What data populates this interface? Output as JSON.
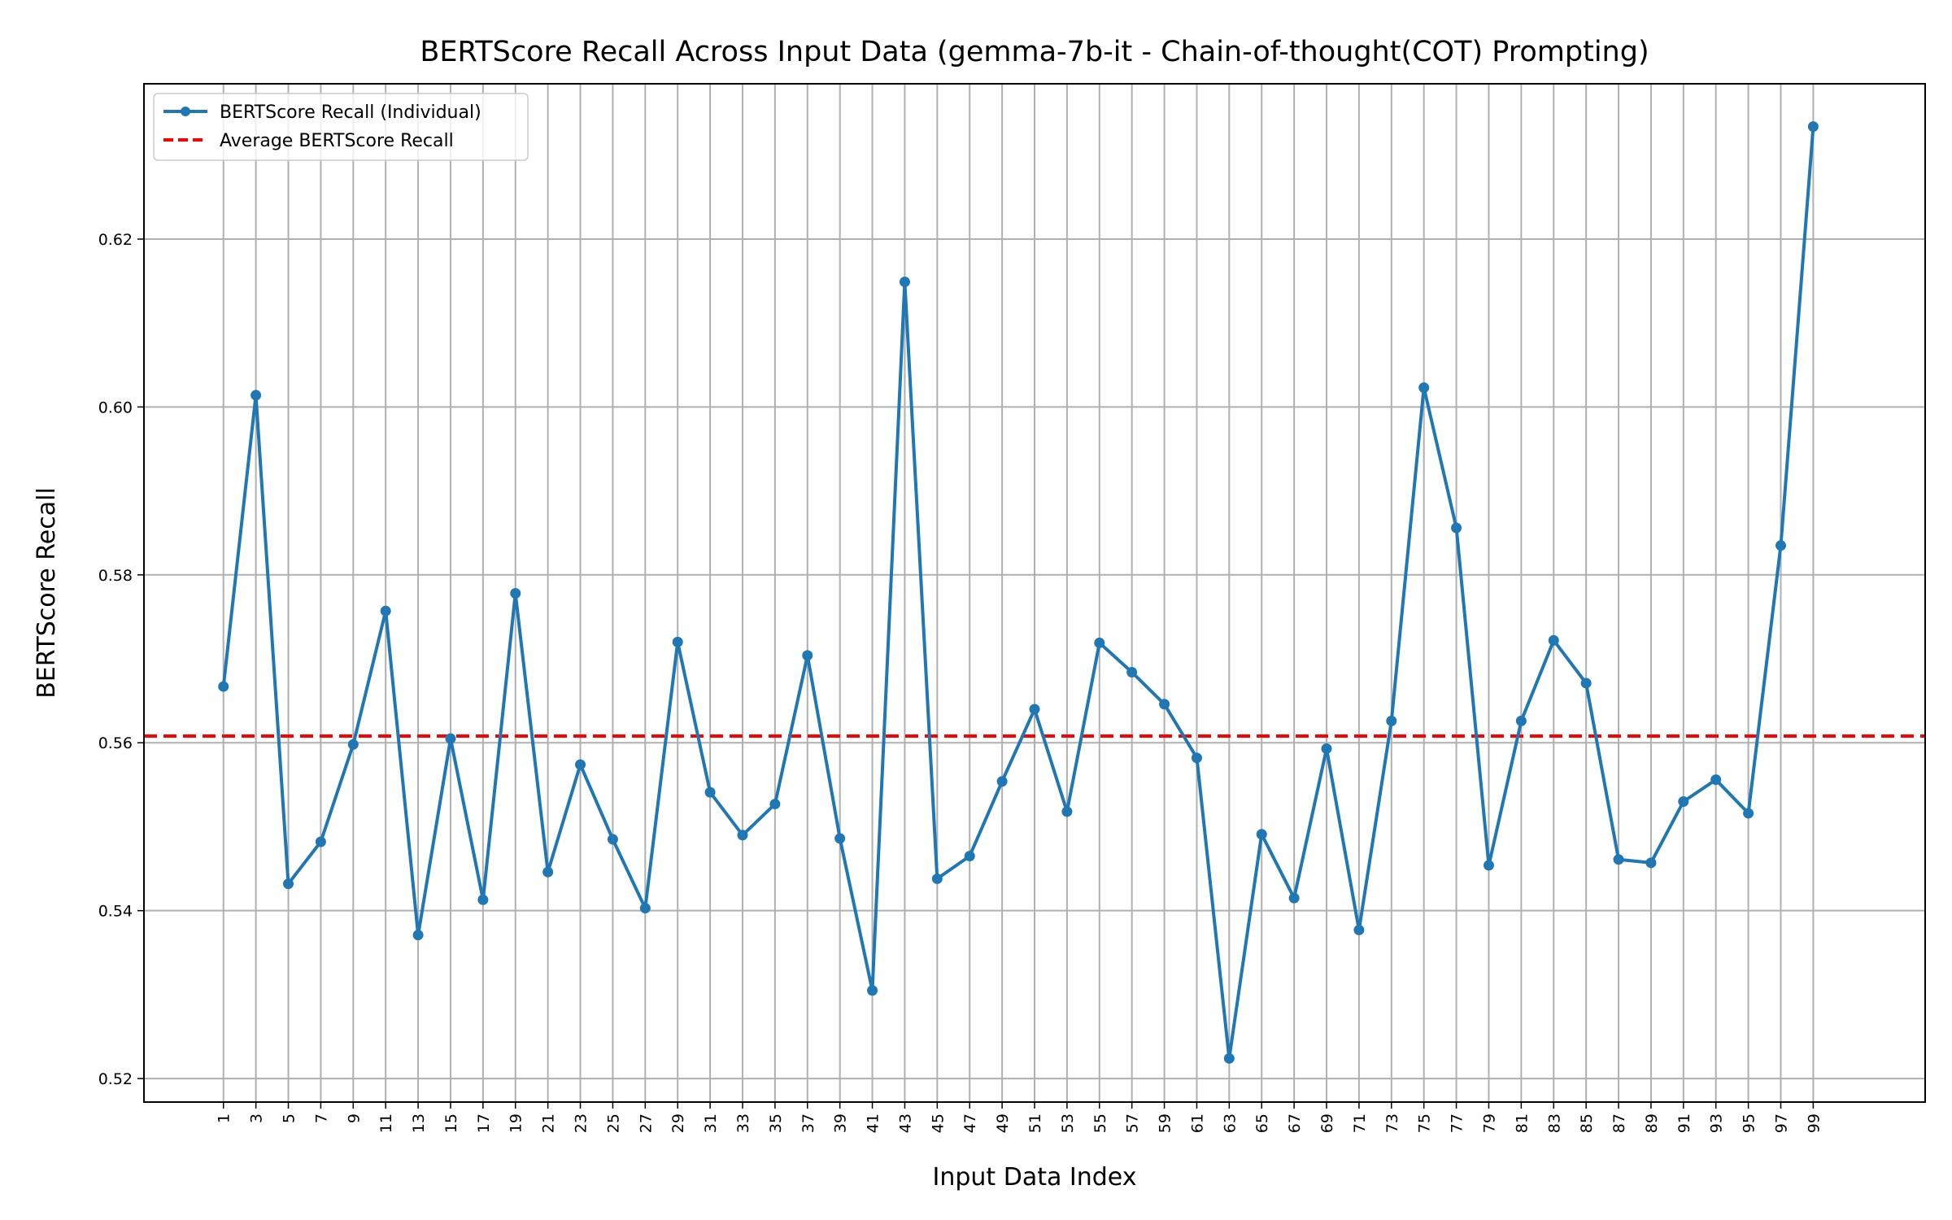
{
  "chart_data": {
    "type": "line",
    "title": "BERTScore Recall Across Input Data (gemma-7b-it - Chain-of-thought(COT) Prompting)",
    "xlabel": "Input Data Index",
    "ylabel": "BERTScore Recall",
    "xlim": [
      -3.9,
      105.9
    ],
    "ylim": [
      0.5172,
      0.6385
    ],
    "x": [
      1,
      3,
      5,
      7,
      9,
      11,
      13,
      15,
      17,
      19,
      21,
      23,
      25,
      27,
      29,
      31,
      33,
      35,
      37,
      39,
      41,
      43,
      45,
      47,
      49,
      51,
      53,
      55,
      57,
      59,
      61,
      63,
      65,
      67,
      69,
      71,
      73,
      75,
      77,
      79,
      81,
      83,
      85,
      87,
      89,
      91,
      93,
      95,
      97,
      99
    ],
    "x_ticks": [
      "1",
      "3",
      "5",
      "7",
      "9",
      "11",
      "13",
      "15",
      "17",
      "19",
      "21",
      "23",
      "25",
      "27",
      "29",
      "31",
      "33",
      "35",
      "37",
      "39",
      "41",
      "43",
      "45",
      "47",
      "49",
      "51",
      "53",
      "55",
      "57",
      "59",
      "61",
      "63",
      "65",
      "67",
      "69",
      "71",
      "73",
      "75",
      "77",
      "79",
      "81",
      "83",
      "85",
      "87",
      "89",
      "91",
      "93",
      "95",
      "97",
      "99"
    ],
    "y_ticks": [
      0.52,
      0.54,
      0.56,
      0.58,
      0.6,
      0.62
    ],
    "y_tick_labels": [
      "0.52",
      "0.54",
      "0.56",
      "0.58",
      "0.60",
      "0.62"
    ],
    "grid": true,
    "legend_position": "top-left",
    "series": [
      {
        "name": "BERTScore Recall (Individual)",
        "color": "#1f77b4",
        "style": "solid-with-markers",
        "values": [
          0.5667,
          0.6014,
          0.5432,
          0.5482,
          0.5598,
          0.5757,
          0.5371,
          0.5605,
          0.5413,
          0.5778,
          0.5446,
          0.5574,
          0.5485,
          0.5403,
          0.572,
          0.5541,
          0.549,
          0.5527,
          0.5704,
          0.5486,
          0.5305,
          0.6149,
          0.5438,
          0.5465,
          0.5554,
          0.564,
          0.5518,
          0.5719,
          0.5684,
          0.5646,
          0.5582,
          0.5224,
          0.5491,
          0.5415,
          0.5593,
          0.5377,
          0.5626,
          0.6023,
          0.5856,
          0.5454,
          0.5626,
          0.5722,
          0.5671,
          0.5461,
          0.5457,
          0.553,
          0.5556,
          0.5516,
          0.5835,
          0.6334
        ]
      },
      {
        "name": "Average BERTScore Recall",
        "color": "#ff0000",
        "style": "dashed-horizontal",
        "value": 0.5608
      }
    ]
  }
}
